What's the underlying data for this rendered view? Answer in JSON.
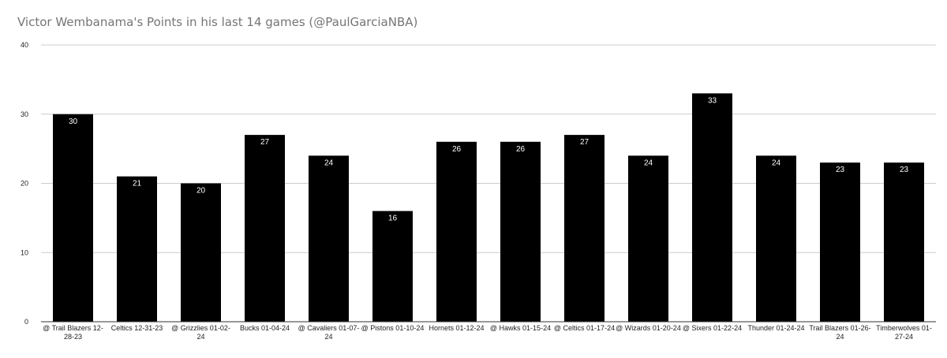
{
  "chart_data": {
    "type": "bar",
    "title": "Victor Wembanama's Points in his last 14 games (@PaulGarciaNBA)",
    "categories": [
      "@ Trail Blazers 12-28-23",
      "Celtics 12-31-23",
      "@ Grizzlies 01-02-24",
      "Bucks 01-04-24",
      "@ Cavaliers 01-07-24",
      "@ Pistons 01-10-24",
      "Hornets 01-12-24",
      "@ Hawks 01-15-24",
      "@ Celtics 01-17-24",
      "@ Wizards 01-20-24",
      "@ Sixers 01-22-24",
      "Thunder 01-24-24",
      "Trail Blazers 01-26-24",
      "Timberwolves 01-27-24"
    ],
    "category_lines": [
      [
        "@ Trail Blazers 12-",
        "28-23"
      ],
      [
        "Celtics 12-31-23"
      ],
      [
        "@ Grizzlies 01-02-",
        "24"
      ],
      [
        "Bucks 01-04-24"
      ],
      [
        "@ Cavaliers 01-07-",
        "24"
      ],
      [
        "@ Pistons 01-10-24"
      ],
      [
        "Hornets 01-12-24"
      ],
      [
        "@ Hawks 01-15-24"
      ],
      [
        "@ Celtics 01-17-24"
      ],
      [
        "@ Wizards 01-20-24"
      ],
      [
        "@ Sixers 01-22-24"
      ],
      [
        "Thunder 01-24-24"
      ],
      [
        "Trail Blazers 01-26-",
        "24"
      ],
      [
        "Timberwolves 01-",
        "27-24"
      ]
    ],
    "values": [
      30,
      21,
      20,
      27,
      24,
      16,
      26,
      26,
      27,
      24,
      33,
      24,
      23,
      23
    ],
    "xlabel": "",
    "ylabel": "",
    "ylim": [
      0,
      40
    ],
    "yticks": [
      0,
      10,
      20,
      30,
      40
    ],
    "grid": true,
    "legend": "none",
    "bar_color": "#000000",
    "data_label_color": "#ffffff",
    "grid_color": "#cccccc"
  }
}
